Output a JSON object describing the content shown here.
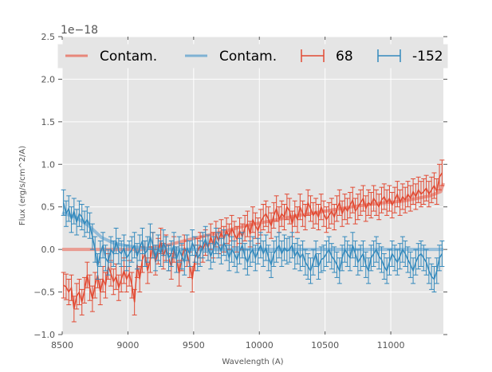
{
  "chart_data": {
    "type": "line",
    "title": "",
    "xlabel": "Wavelength (A)",
    "ylabel": "Flux (erg/s/cm^2/A)",
    "y_offset_label": "1e−18",
    "xlim": [
      8500,
      11400
    ],
    "ylim": [
      -1.0,
      2.5
    ],
    "grid": true,
    "legend_position": "top",
    "x_ticks": [
      8500,
      9000,
      9500,
      10000,
      10500,
      11000
    ],
    "x_tick_labels": [
      "8500",
      "9000",
      "9500",
      "10000",
      "10500",
      "11000"
    ],
    "y_ticks": [
      -1.0,
      -0.5,
      0.0,
      0.5,
      1.0,
      1.5,
      2.0,
      2.5
    ],
    "y_tick_labels": [
      "−1.0",
      "−0.5",
      "0.0",
      "0.5",
      "1.0",
      "1.5",
      "2.0",
      "2.5"
    ],
    "colors": {
      "red": "#e24a33",
      "blue": "#348abd",
      "red_contam": "#e8877a",
      "blue_contam": "#7fb2d4",
      "plot_bg": "#e5e5e5",
      "grid": "#ffffff"
    },
    "legend": [
      {
        "label": "Contam.",
        "kind": "line",
        "color": "#e8877a"
      },
      {
        "label": "Contam.",
        "kind": "line",
        "color": "#7fb2d4"
      },
      {
        "label": "68",
        "kind": "errorbar",
        "color": "#e24a33"
      },
      {
        "label": "-152",
        "kind": "errorbar",
        "color": "#348abd"
      }
    ],
    "series": [
      {
        "name": "Contam. (68)",
        "kind": "line",
        "color": "#e8877a",
        "x": [
          8500,
          8900,
          9100,
          9300,
          9500,
          9700,
          9900,
          10100,
          10300,
          10500,
          10700,
          10900,
          11100,
          11300,
          11380,
          11400
        ],
        "y": [
          0.0,
          0.0,
          0.0,
          0.05,
          0.13,
          0.2,
          0.28,
          0.34,
          0.4,
          0.45,
          0.5,
          0.54,
          0.57,
          0.63,
          0.68,
          0.78
        ]
      },
      {
        "name": "Contam. (-152)",
        "kind": "line",
        "color": "#7fb2d4",
        "x": [
          8500,
          8600,
          8700,
          8800,
          8900,
          9000,
          9100,
          9200,
          9400,
          9600,
          10000,
          10500,
          11000,
          11400
        ],
        "y": [
          0.43,
          0.38,
          0.28,
          0.14,
          0.07,
          0.04,
          0.02,
          0.01,
          0.0,
          0.0,
          0.0,
          0.0,
          0.0,
          0.0
        ]
      },
      {
        "name": "68",
        "kind": "errorbar",
        "color": "#e24a33",
        "x": [
          8510,
          8530,
          8550,
          8570,
          8590,
          8610,
          8630,
          8650,
          8670,
          8690,
          8710,
          8730,
          8750,
          8770,
          8790,
          8810,
          8830,
          8850,
          8870,
          8890,
          8910,
          8930,
          8950,
          8970,
          8990,
          9010,
          9030,
          9050,
          9070,
          9090,
          9110,
          9130,
          9150,
          9170,
          9190,
          9210,
          9230,
          9250,
          9270,
          9290,
          9310,
          9330,
          9350,
          9370,
          9390,
          9410,
          9430,
          9450,
          9470,
          9490,
          9510,
          9530,
          9550,
          9570,
          9590,
          9610,
          9630,
          9650,
          9670,
          9690,
          9710,
          9730,
          9750,
          9770,
          9790,
          9810,
          9830,
          9850,
          9870,
          9890,
          9910,
          9930,
          9950,
          9970,
          9990,
          10010,
          10030,
          10050,
          10070,
          10090,
          10110,
          10130,
          10150,
          10170,
          10190,
          10210,
          10230,
          10250,
          10270,
          10290,
          10310,
          10330,
          10350,
          10370,
          10390,
          10410,
          10430,
          10450,
          10470,
          10490,
          10510,
          10530,
          10550,
          10570,
          10590,
          10610,
          10630,
          10650,
          10670,
          10690,
          10710,
          10730,
          10750,
          10770,
          10790,
          10810,
          10830,
          10850,
          10870,
          10890,
          10910,
          10930,
          10950,
          10970,
          10990,
          11010,
          11030,
          11050,
          11070,
          11090,
          11110,
          11130,
          11150,
          11170,
          11190,
          11210,
          11230,
          11250,
          11270,
          11290,
          11310,
          11330,
          11350,
          11370,
          11390
        ],
        "y": [
          -0.42,
          -0.44,
          -0.5,
          -0.45,
          -0.7,
          -0.55,
          -0.5,
          -0.62,
          -0.48,
          -0.3,
          -0.45,
          -0.58,
          -0.42,
          -0.3,
          -0.5,
          -0.35,
          -0.42,
          -0.2,
          -0.28,
          -0.38,
          -0.32,
          -0.45,
          -0.35,
          -0.25,
          -0.35,
          -0.28,
          -0.42,
          -0.62,
          -0.18,
          -0.35,
          -0.12,
          -0.05,
          -0.25,
          -0.12,
          0.05,
          -0.15,
          -0.02,
          0.1,
          -0.08,
          0.02,
          -0.1,
          -0.2,
          0.0,
          -0.12,
          -0.28,
          -0.1,
          0.02,
          -0.05,
          -0.18,
          -0.35,
          -0.1,
          -0.02,
          0.05,
          0.0,
          0.08,
          0.02,
          0.15,
          0.05,
          0.18,
          0.1,
          0.2,
          0.12,
          0.22,
          0.15,
          0.25,
          0.18,
          0.12,
          0.22,
          0.15,
          0.25,
          0.3,
          0.18,
          0.35,
          0.28,
          0.22,
          0.32,
          0.38,
          0.42,
          0.35,
          0.28,
          0.4,
          0.48,
          0.35,
          0.42,
          0.38,
          0.5,
          0.45,
          0.3,
          0.42,
          0.35,
          0.5,
          0.42,
          0.38,
          0.55,
          0.48,
          0.4,
          0.45,
          0.38,
          0.5,
          0.42,
          0.35,
          0.4,
          0.45,
          0.38,
          0.48,
          0.55,
          0.42,
          0.5,
          0.45,
          0.52,
          0.58,
          0.45,
          0.5,
          0.55,
          0.6,
          0.48,
          0.55,
          0.52,
          0.6,
          0.55,
          0.5,
          0.58,
          0.62,
          0.55,
          0.6,
          0.52,
          0.58,
          0.65,
          0.55,
          0.62,
          0.58,
          0.65,
          0.6,
          0.68,
          0.62,
          0.7,
          0.65,
          0.68,
          0.72,
          0.65,
          0.7,
          0.75,
          0.68,
          0.85,
          0.9
        ],
        "err": 0.15
      },
      {
        "name": "-152",
        "kind": "errorbar",
        "color": "#348abd",
        "x": [
          8510,
          8530,
          8550,
          8570,
          8590,
          8610,
          8630,
          8650,
          8670,
          8690,
          8710,
          8730,
          8750,
          8770,
          8790,
          8810,
          8830,
          8850,
          8870,
          8890,
          8910,
          8930,
          8950,
          8970,
          8990,
          9010,
          9030,
          9050,
          9070,
          9090,
          9110,
          9130,
          9150,
          9170,
          9190,
          9210,
          9230,
          9250,
          9270,
          9290,
          9310,
          9330,
          9350,
          9370,
          9390,
          9410,
          9430,
          9450,
          9470,
          9490,
          9510,
          9530,
          9550,
          9570,
          9590,
          9610,
          9630,
          9650,
          9670,
          9690,
          9710,
          9730,
          9750,
          9770,
          9790,
          9810,
          9830,
          9850,
          9870,
          9890,
          9910,
          9930,
          9950,
          9970,
          9990,
          10010,
          10030,
          10050,
          10070,
          10090,
          10110,
          10130,
          10150,
          10170,
          10190,
          10210,
          10230,
          10250,
          10270,
          10290,
          10310,
          10330,
          10350,
          10370,
          10390,
          10410,
          10430,
          10450,
          10470,
          10490,
          10510,
          10530,
          10550,
          10570,
          10590,
          10610,
          10630,
          10650,
          10670,
          10690,
          10710,
          10730,
          10750,
          10770,
          10790,
          10810,
          10830,
          10850,
          10870,
          10890,
          10910,
          10930,
          10950,
          10970,
          10990,
          11010,
          11030,
          11050,
          11070,
          11090,
          11110,
          11130,
          11150,
          11170,
          11190,
          11210,
          11230,
          11250,
          11270,
          11290,
          11310,
          11330,
          11350,
          11370,
          11390
        ],
        "y": [
          0.55,
          0.42,
          0.48,
          0.35,
          0.45,
          0.32,
          0.42,
          0.38,
          0.3,
          0.35,
          0.28,
          0.15,
          0.0,
          -0.2,
          -0.05,
          0.05,
          -0.1,
          -0.15,
          0.0,
          -0.05,
          0.1,
          -0.02,
          -0.05,
          0.02,
          -0.1,
          -0.05,
          0.0,
          0.05,
          -0.08,
          0.02,
          0.1,
          -0.05,
          0.0,
          0.15,
          0.05,
          -0.1,
          0.02,
          -0.05,
          0.08,
          0.0,
          -0.1,
          -0.05,
          0.05,
          -0.12,
          0.0,
          -0.08,
          -0.15,
          0.02,
          -0.05,
          0.08,
          0.0,
          -0.1,
          -0.05,
          0.05,
          0.12,
          0.02,
          -0.08,
          0.0,
          0.1,
          0.05,
          -0.02,
          0.08,
          0.02,
          -0.1,
          0.0,
          -0.05,
          -0.12,
          -0.02,
          0.05,
          -0.08,
          -0.15,
          -0.05,
          0.0,
          -0.1,
          -0.02,
          0.05,
          -0.05,
          0.02,
          -0.1,
          -0.18,
          -0.05,
          0.0,
          0.05,
          -0.05,
          0.02,
          -0.02,
          0.0,
          0.05,
          -0.08,
          -0.02,
          -0.1,
          -0.05,
          -0.15,
          -0.2,
          -0.25,
          -0.15,
          -0.05,
          -0.2,
          -0.12,
          -0.1,
          -0.05,
          0.0,
          -0.08,
          -0.12,
          -0.18,
          -0.25,
          -0.1,
          0.0,
          -0.05,
          -0.1,
          0.05,
          -0.05,
          -0.15,
          -0.1,
          -0.05,
          -0.18,
          -0.25,
          -0.1,
          -0.05,
          0.0,
          -0.08,
          -0.12,
          -0.2,
          -0.25,
          -0.15,
          -0.05,
          -0.1,
          -0.15,
          -0.08,
          0.0,
          -0.05,
          -0.12,
          -0.18,
          -0.25,
          -0.15,
          -0.08,
          -0.05,
          -0.1,
          -0.15,
          -0.25,
          -0.32,
          -0.35,
          -0.25,
          -0.1,
          -0.05
        ],
        "err": 0.15
      }
    ]
  }
}
